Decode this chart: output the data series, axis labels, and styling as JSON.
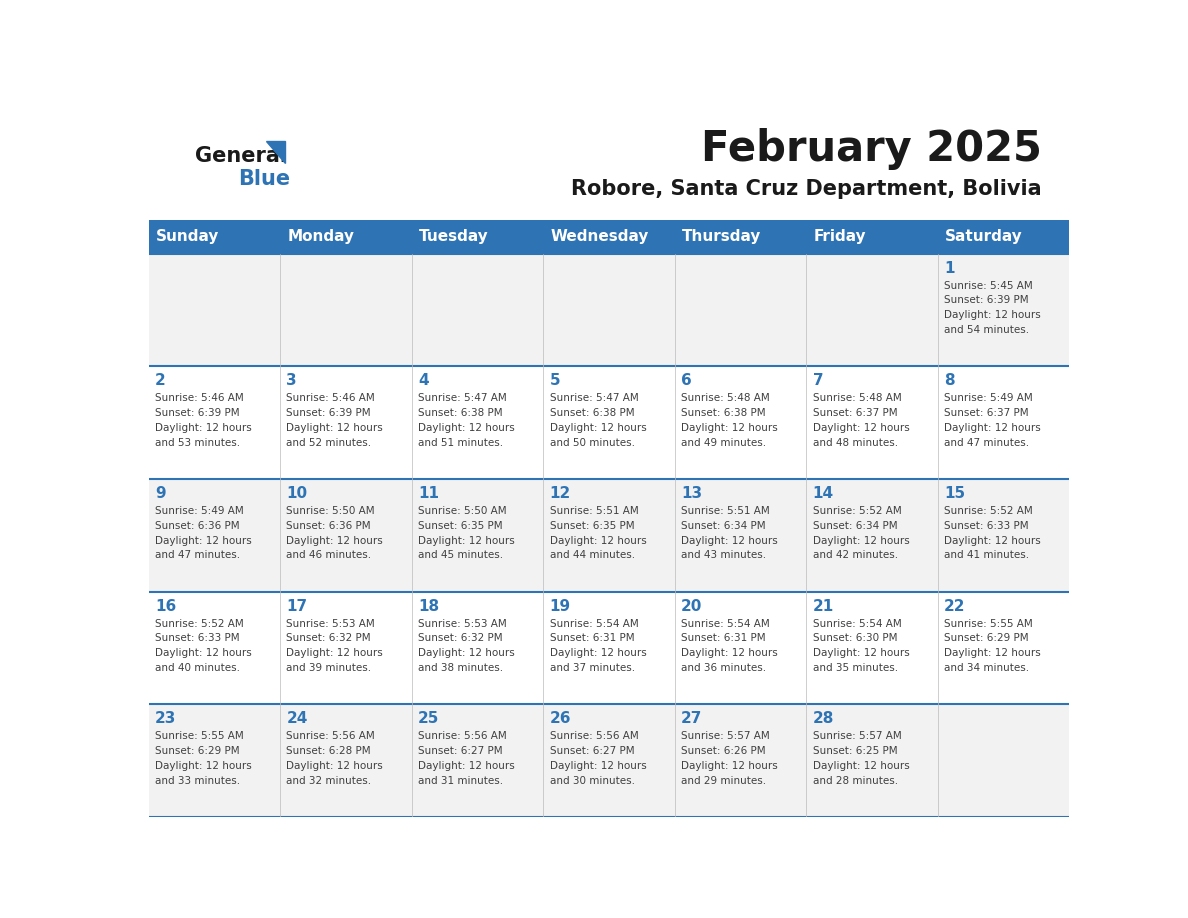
{
  "title": "February 2025",
  "subtitle": "Robore, Santa Cruz Department, Bolivia",
  "days_of_week": [
    "Sunday",
    "Monday",
    "Tuesday",
    "Wednesday",
    "Thursday",
    "Friday",
    "Saturday"
  ],
  "header_bg_color": "#2E74B5",
  "header_text_color": "#FFFFFF",
  "cell_bg_even": "#F2F2F2",
  "cell_bg_odd": "#FFFFFF",
  "cell_border_color": "#2E74B5",
  "day_number_color": "#2E74B5",
  "text_color": "#404040",
  "logo_general_color": "#1A1A1A",
  "logo_blue_color": "#2E74B5",
  "calendar_data": [
    {
      "day": 1,
      "col": 6,
      "row": 0,
      "sunrise": "5:45 AM",
      "sunset": "6:39 PM",
      "daylight": "12 hours and 54 minutes"
    },
    {
      "day": 2,
      "col": 0,
      "row": 1,
      "sunrise": "5:46 AM",
      "sunset": "6:39 PM",
      "daylight": "12 hours and 53 minutes"
    },
    {
      "day": 3,
      "col": 1,
      "row": 1,
      "sunrise": "5:46 AM",
      "sunset": "6:39 PM",
      "daylight": "12 hours and 52 minutes"
    },
    {
      "day": 4,
      "col": 2,
      "row": 1,
      "sunrise": "5:47 AM",
      "sunset": "6:38 PM",
      "daylight": "12 hours and 51 minutes"
    },
    {
      "day": 5,
      "col": 3,
      "row": 1,
      "sunrise": "5:47 AM",
      "sunset": "6:38 PM",
      "daylight": "12 hours and 50 minutes"
    },
    {
      "day": 6,
      "col": 4,
      "row": 1,
      "sunrise": "5:48 AM",
      "sunset": "6:38 PM",
      "daylight": "12 hours and 49 minutes"
    },
    {
      "day": 7,
      "col": 5,
      "row": 1,
      "sunrise": "5:48 AM",
      "sunset": "6:37 PM",
      "daylight": "12 hours and 48 minutes"
    },
    {
      "day": 8,
      "col": 6,
      "row": 1,
      "sunrise": "5:49 AM",
      "sunset": "6:37 PM",
      "daylight": "12 hours and 47 minutes"
    },
    {
      "day": 9,
      "col": 0,
      "row": 2,
      "sunrise": "5:49 AM",
      "sunset": "6:36 PM",
      "daylight": "12 hours and 47 minutes"
    },
    {
      "day": 10,
      "col": 1,
      "row": 2,
      "sunrise": "5:50 AM",
      "sunset": "6:36 PM",
      "daylight": "12 hours and 46 minutes"
    },
    {
      "day": 11,
      "col": 2,
      "row": 2,
      "sunrise": "5:50 AM",
      "sunset": "6:35 PM",
      "daylight": "12 hours and 45 minutes"
    },
    {
      "day": 12,
      "col": 3,
      "row": 2,
      "sunrise": "5:51 AM",
      "sunset": "6:35 PM",
      "daylight": "12 hours and 44 minutes"
    },
    {
      "day": 13,
      "col": 4,
      "row": 2,
      "sunrise": "5:51 AM",
      "sunset": "6:34 PM",
      "daylight": "12 hours and 43 minutes"
    },
    {
      "day": 14,
      "col": 5,
      "row": 2,
      "sunrise": "5:52 AM",
      "sunset": "6:34 PM",
      "daylight": "12 hours and 42 minutes"
    },
    {
      "day": 15,
      "col": 6,
      "row": 2,
      "sunrise": "5:52 AM",
      "sunset": "6:33 PM",
      "daylight": "12 hours and 41 minutes"
    },
    {
      "day": 16,
      "col": 0,
      "row": 3,
      "sunrise": "5:52 AM",
      "sunset": "6:33 PM",
      "daylight": "12 hours and 40 minutes"
    },
    {
      "day": 17,
      "col": 1,
      "row": 3,
      "sunrise": "5:53 AM",
      "sunset": "6:32 PM",
      "daylight": "12 hours and 39 minutes"
    },
    {
      "day": 18,
      "col": 2,
      "row": 3,
      "sunrise": "5:53 AM",
      "sunset": "6:32 PM",
      "daylight": "12 hours and 38 minutes"
    },
    {
      "day": 19,
      "col": 3,
      "row": 3,
      "sunrise": "5:54 AM",
      "sunset": "6:31 PM",
      "daylight": "12 hours and 37 minutes"
    },
    {
      "day": 20,
      "col": 4,
      "row": 3,
      "sunrise": "5:54 AM",
      "sunset": "6:31 PM",
      "daylight": "12 hours and 36 minutes"
    },
    {
      "day": 21,
      "col": 5,
      "row": 3,
      "sunrise": "5:54 AM",
      "sunset": "6:30 PM",
      "daylight": "12 hours and 35 minutes"
    },
    {
      "day": 22,
      "col": 6,
      "row": 3,
      "sunrise": "5:55 AM",
      "sunset": "6:29 PM",
      "daylight": "12 hours and 34 minutes"
    },
    {
      "day": 23,
      "col": 0,
      "row": 4,
      "sunrise": "5:55 AM",
      "sunset": "6:29 PM",
      "daylight": "12 hours and 33 minutes"
    },
    {
      "day": 24,
      "col": 1,
      "row": 4,
      "sunrise": "5:56 AM",
      "sunset": "6:28 PM",
      "daylight": "12 hours and 32 minutes"
    },
    {
      "day": 25,
      "col": 2,
      "row": 4,
      "sunrise": "5:56 AM",
      "sunset": "6:27 PM",
      "daylight": "12 hours and 31 minutes"
    },
    {
      "day": 26,
      "col": 3,
      "row": 4,
      "sunrise": "5:56 AM",
      "sunset": "6:27 PM",
      "daylight": "12 hours and 30 minutes"
    },
    {
      "day": 27,
      "col": 4,
      "row": 4,
      "sunrise": "5:57 AM",
      "sunset": "6:26 PM",
      "daylight": "12 hours and 29 minutes"
    },
    {
      "day": 28,
      "col": 5,
      "row": 4,
      "sunrise": "5:57 AM",
      "sunset": "6:25 PM",
      "daylight": "12 hours and 28 minutes"
    }
  ]
}
